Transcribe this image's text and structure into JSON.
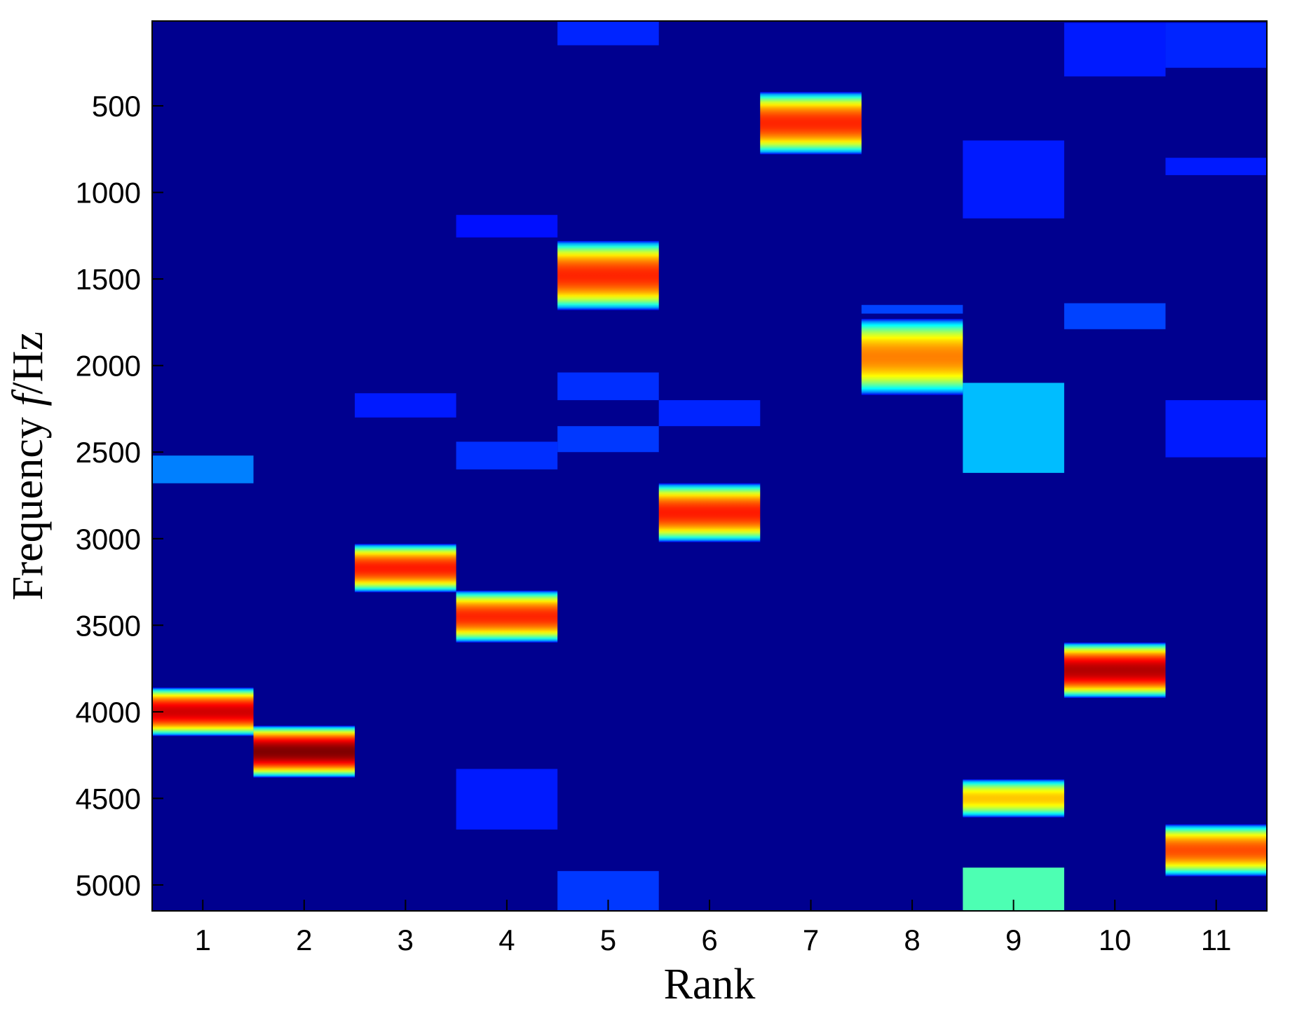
{
  "chart_data": {
    "type": "heatmap",
    "title": "",
    "xlabel": "Rank",
    "ylabel": {
      "prefix": "Frequency ",
      "italic": "f",
      "suffix": "/Hz"
    },
    "x_categories": [
      1,
      2,
      3,
      4,
      5,
      6,
      7,
      8,
      9,
      10,
      11
    ],
    "x_tick_labels": [
      "1",
      "2",
      "3",
      "4",
      "5",
      "6",
      "7",
      "8",
      "9",
      "10",
      "11"
    ],
    "y_ticks": [
      500,
      1000,
      1500,
      2000,
      2500,
      3000,
      3500,
      4000,
      4500,
      5000
    ],
    "y_tick_labels": [
      "500",
      "1000",
      "1500",
      "2000",
      "2500",
      "3000",
      "3500",
      "4000",
      "4500",
      "5000"
    ],
    "ylim": [
      10,
      5150
    ],
    "y_reversed": true,
    "colormap": "jet",
    "background_color": "#00008f",
    "grid": false,
    "colorbar": false,
    "peaks": [
      {
        "rank": 1,
        "center_hz": 4000,
        "half_width_hz": 140,
        "intensity": 0.92
      },
      {
        "rank": 2,
        "center_hz": 4230,
        "half_width_hz": 150,
        "intensity": 1.0
      },
      {
        "rank": 3,
        "center_hz": 3170,
        "half_width_hz": 140,
        "intensity": 0.85
      },
      {
        "rank": 4,
        "center_hz": 3450,
        "half_width_hz": 150,
        "intensity": 0.84
      },
      {
        "rank": 5,
        "center_hz": 1480,
        "half_width_hz": 200,
        "intensity": 0.84
      },
      {
        "rank": 6,
        "center_hz": 2850,
        "half_width_hz": 170,
        "intensity": 0.85
      },
      {
        "rank": 7,
        "center_hz": 600,
        "half_width_hz": 180,
        "intensity": 0.84
      },
      {
        "rank": 8,
        "center_hz": 1950,
        "half_width_hz": 220,
        "intensity": 0.75
      },
      {
        "rank": 9,
        "center_hz": 4500,
        "half_width_hz": 110,
        "intensity": 0.68
      },
      {
        "rank": 10,
        "center_hz": 3760,
        "half_width_hz": 160,
        "intensity": 0.95
      },
      {
        "rank": 11,
        "center_hz": 4800,
        "half_width_hz": 150,
        "intensity": 0.8
      }
    ],
    "weak_bands": [
      {
        "rank": 1,
        "from_hz": 2520,
        "to_hz": 2680,
        "intensity": 0.14
      },
      {
        "rank": 3,
        "from_hz": 2160,
        "to_hz": 2300,
        "intensity": 0.04
      },
      {
        "rank": 4,
        "from_hz": 2440,
        "to_hz": 2600,
        "intensity": 0.06
      },
      {
        "rank": 4,
        "from_hz": 4330,
        "to_hz": 4680,
        "intensity": 0.04
      },
      {
        "rank": 4,
        "from_hz": 1130,
        "to_hz": 1260,
        "intensity": 0.03
      },
      {
        "rank": 5,
        "from_hz": 2040,
        "to_hz": 2200,
        "intensity": 0.06
      },
      {
        "rank": 5,
        "from_hz": 2350,
        "to_hz": 2500,
        "intensity": 0.07
      },
      {
        "rank": 5,
        "from_hz": 4920,
        "to_hz": 5150,
        "intensity": 0.07
      },
      {
        "rank": 5,
        "from_hz": 10,
        "to_hz": 150,
        "intensity": 0.05
      },
      {
        "rank": 6,
        "from_hz": 2200,
        "to_hz": 2350,
        "intensity": 0.05
      },
      {
        "rank": 8,
        "from_hz": 1650,
        "to_hz": 1700,
        "intensity": 0.08
      },
      {
        "rank": 9,
        "from_hz": 2100,
        "to_hz": 2620,
        "intensity": 0.2
      },
      {
        "rank": 9,
        "from_hz": 4900,
        "to_hz": 5150,
        "intensity": 0.34
      },
      {
        "rank": 9,
        "from_hz": 700,
        "to_hz": 1150,
        "intensity": 0.04
      },
      {
        "rank": 10,
        "from_hz": 1640,
        "to_hz": 1790,
        "intensity": 0.08
      },
      {
        "rank": 10,
        "from_hz": 20,
        "to_hz": 330,
        "intensity": 0.04
      },
      {
        "rank": 11,
        "from_hz": 2200,
        "to_hz": 2530,
        "intensity": 0.04
      },
      {
        "rank": 11,
        "from_hz": 20,
        "to_hz": 280,
        "intensity": 0.05
      },
      {
        "rank": 11,
        "from_hz": 800,
        "to_hz": 900,
        "intensity": 0.04
      }
    ]
  }
}
